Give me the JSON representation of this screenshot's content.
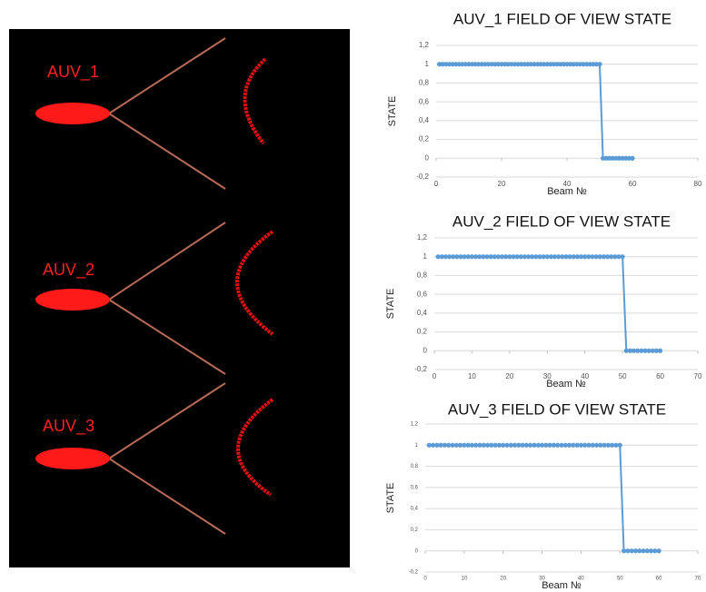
{
  "scene": {
    "labels": [
      "AUV_1",
      "AUV_2",
      "AUV_3"
    ]
  },
  "chart_data": [
    {
      "type": "line",
      "title": "AUV_1 FIELD OF VIEW STATE",
      "x_label": "Beam №",
      "y_label": "STATE",
      "x": [
        1,
        2,
        3,
        4,
        5,
        6,
        7,
        8,
        9,
        10,
        11,
        12,
        13,
        14,
        15,
        16,
        17,
        18,
        19,
        20,
        21,
        22,
        23,
        24,
        25,
        26,
        27,
        28,
        29,
        30,
        31,
        32,
        33,
        34,
        35,
        36,
        37,
        38,
        39,
        40,
        41,
        42,
        43,
        44,
        45,
        46,
        47,
        48,
        49,
        50,
        51,
        52,
        53,
        54,
        55,
        56,
        57,
        58,
        59,
        60
      ],
      "series": [
        {
          "name": "STATE",
          "color": "#5b9bd5",
          "values": [
            1,
            1,
            1,
            1,
            1,
            1,
            1,
            1,
            1,
            1,
            1,
            1,
            1,
            1,
            1,
            1,
            1,
            1,
            1,
            1,
            1,
            1,
            1,
            1,
            1,
            1,
            1,
            1,
            1,
            1,
            1,
            1,
            1,
            1,
            1,
            1,
            1,
            1,
            1,
            1,
            1,
            1,
            1,
            1,
            1,
            1,
            1,
            1,
            1,
            1,
            0,
            0,
            0,
            0,
            0,
            0,
            0,
            0,
            0,
            0
          ]
        }
      ],
      "xlim": [
        0,
        80
      ],
      "xticks": [
        0,
        20,
        40,
        60,
        80
      ],
      "ylim": [
        -0.2,
        1.2
      ],
      "yticks": [
        {
          "value": -0.2,
          "label": "-0,2"
        },
        0,
        {
          "value": 0.2,
          "label": "0,2"
        },
        {
          "value": 0.4,
          "label": "0,4"
        },
        {
          "value": 0.6,
          "label": "0,6"
        },
        {
          "value": 0.8,
          "label": "0,8"
        },
        1,
        {
          "value": 1.2,
          "label": "1,2"
        }
      ],
      "grid": true
    },
    {
      "type": "line",
      "title": "AUV_2 FIELD OF VIEW STATE",
      "x_label": "Beam №",
      "y_label": "STATE",
      "x": [
        1,
        2,
        3,
        4,
        5,
        6,
        7,
        8,
        9,
        10,
        11,
        12,
        13,
        14,
        15,
        16,
        17,
        18,
        19,
        20,
        21,
        22,
        23,
        24,
        25,
        26,
        27,
        28,
        29,
        30,
        31,
        32,
        33,
        34,
        35,
        36,
        37,
        38,
        39,
        40,
        41,
        42,
        43,
        44,
        45,
        46,
        47,
        48,
        49,
        50,
        51,
        52,
        53,
        54,
        55,
        56,
        57,
        58,
        59,
        60
      ],
      "series": [
        {
          "name": "STATE",
          "color": "#5b9bd5",
          "values": [
            1,
            1,
            1,
            1,
            1,
            1,
            1,
            1,
            1,
            1,
            1,
            1,
            1,
            1,
            1,
            1,
            1,
            1,
            1,
            1,
            1,
            1,
            1,
            1,
            1,
            1,
            1,
            1,
            1,
            1,
            1,
            1,
            1,
            1,
            1,
            1,
            1,
            1,
            1,
            1,
            1,
            1,
            1,
            1,
            1,
            1,
            1,
            1,
            1,
            1,
            0,
            0,
            0,
            0,
            0,
            0,
            0,
            0,
            0,
            0
          ]
        }
      ],
      "xlim": [
        0,
        70
      ],
      "xticks": [
        0,
        10,
        20,
        30,
        40,
        50,
        60,
        70
      ],
      "ylim": [
        -0.2,
        1.2
      ],
      "yticks": [
        {
          "value": -0.2,
          "label": "-0,2"
        },
        0,
        {
          "value": 0.2,
          "label": "0,2"
        },
        {
          "value": 0.4,
          "label": "0,4"
        },
        {
          "value": 0.6,
          "label": "0,6"
        },
        {
          "value": 0.8,
          "label": "0,8"
        },
        1,
        {
          "value": 1.2,
          "label": "1,2"
        }
      ],
      "grid": true
    },
    {
      "type": "line",
      "title": "AUV_3 FIELD OF VIEW STATE",
      "x_label": "Beam №",
      "y_label": "STATE",
      "x": [
        1,
        2,
        3,
        4,
        5,
        6,
        7,
        8,
        9,
        10,
        11,
        12,
        13,
        14,
        15,
        16,
        17,
        18,
        19,
        20,
        21,
        22,
        23,
        24,
        25,
        26,
        27,
        28,
        29,
        30,
        31,
        32,
        33,
        34,
        35,
        36,
        37,
        38,
        39,
        40,
        41,
        42,
        43,
        44,
        45,
        46,
        47,
        48,
        49,
        50,
        51,
        52,
        53,
        54,
        55,
        56,
        57,
        58,
        59,
        60
      ],
      "series": [
        {
          "name": "STATE",
          "color": "#5b9bd5",
          "values": [
            1,
            1,
            1,
            1,
            1,
            1,
            1,
            1,
            1,
            1,
            1,
            1,
            1,
            1,
            1,
            1,
            1,
            1,
            1,
            1,
            1,
            1,
            1,
            1,
            1,
            1,
            1,
            1,
            1,
            1,
            1,
            1,
            1,
            1,
            1,
            1,
            1,
            1,
            1,
            1,
            1,
            1,
            1,
            1,
            1,
            1,
            1,
            1,
            1,
            1,
            0,
            0,
            0,
            0,
            0,
            0,
            0,
            0,
            0,
            0
          ]
        }
      ],
      "xlim": [
        0,
        70
      ],
      "xticks": [
        0,
        10,
        20,
        30,
        40,
        50,
        60,
        70
      ],
      "ylim": [
        -0.2,
        1.2
      ],
      "yticks": [
        {
          "value": -0.2,
          "label": "-0,2"
        },
        0,
        {
          "value": 0.2,
          "label": "0,2"
        },
        {
          "value": 0.4,
          "label": "0,4"
        },
        {
          "value": 0.6,
          "label": "0,6"
        },
        {
          "value": 0.8,
          "label": "0,8"
        },
        1,
        {
          "value": 1.2,
          "label": "1,2"
        }
      ],
      "grid": true
    }
  ]
}
